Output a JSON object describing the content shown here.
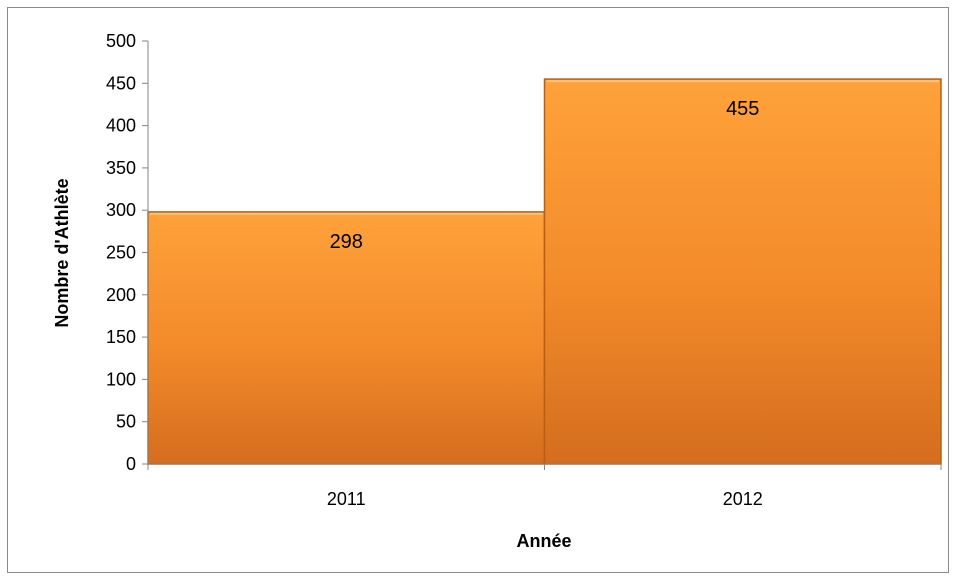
{
  "chart_data": {
    "type": "bar",
    "categories": [
      "2011",
      "2012"
    ],
    "values": [
      298,
      455
    ],
    "data_labels": [
      "298",
      "455"
    ],
    "title": "",
    "xlabel": "Année",
    "ylabel": "Nombre d'Athlète",
    "ylim": [
      0,
      500
    ],
    "yticks": [
      "0",
      "50",
      "100",
      "150",
      "200",
      "250",
      "300",
      "350",
      "400",
      "450",
      "500"
    ],
    "grid": false,
    "legend": "none",
    "bar_color_top": "#ffa23a",
    "bar_color_bottom": "#d46d1e",
    "bar_edge_color": "#b5601a"
  }
}
